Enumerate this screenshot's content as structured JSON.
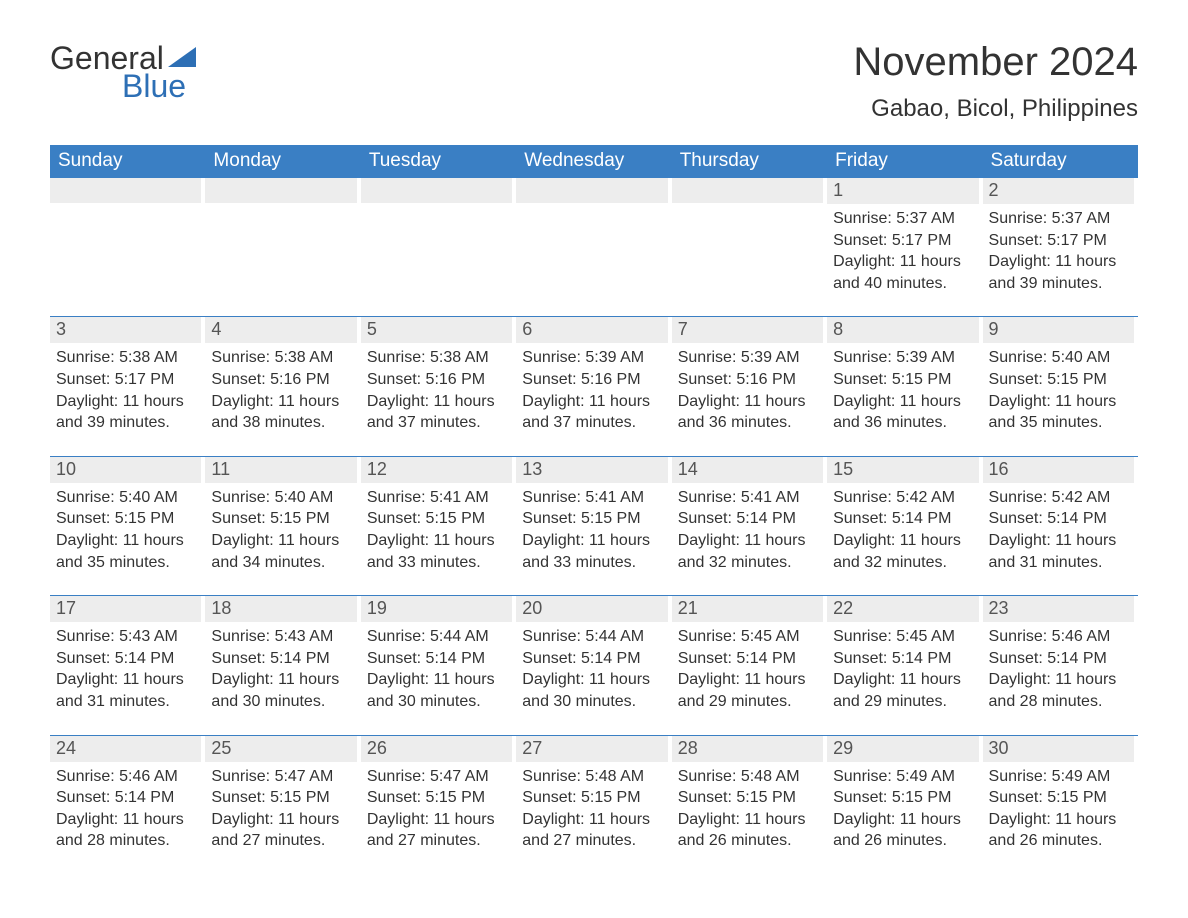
{
  "logo": {
    "text_general": "General",
    "text_blue": "Blue",
    "flag_color": "#2d6fb5"
  },
  "title": {
    "month": "November 2024",
    "location": "Gabao, Bicol, Philippines"
  },
  "colors": {
    "header_bg": "#3a7fc4",
    "header_text": "#ffffff",
    "daynum_bg": "#ededed",
    "week_border": "#3a7fc4",
    "body_text": "#333333",
    "background": "#ffffff"
  },
  "typography": {
    "month_title_fontsize": 40,
    "location_fontsize": 24,
    "weekday_fontsize": 19,
    "daynum_fontsize": 18,
    "body_fontsize": 16
  },
  "weekdays": [
    "Sunday",
    "Monday",
    "Tuesday",
    "Wednesday",
    "Thursday",
    "Friday",
    "Saturday"
  ],
  "weeks": [
    [
      {
        "empty": true
      },
      {
        "empty": true
      },
      {
        "empty": true
      },
      {
        "empty": true
      },
      {
        "empty": true
      },
      {
        "day": "1",
        "sunrise": "Sunrise: 5:37 AM",
        "sunset": "Sunset: 5:17 PM",
        "daylight1": "Daylight: 11 hours",
        "daylight2": "and 40 minutes."
      },
      {
        "day": "2",
        "sunrise": "Sunrise: 5:37 AM",
        "sunset": "Sunset: 5:17 PM",
        "daylight1": "Daylight: 11 hours",
        "daylight2": "and 39 minutes."
      }
    ],
    [
      {
        "day": "3",
        "sunrise": "Sunrise: 5:38 AM",
        "sunset": "Sunset: 5:17 PM",
        "daylight1": "Daylight: 11 hours",
        "daylight2": "and 39 minutes."
      },
      {
        "day": "4",
        "sunrise": "Sunrise: 5:38 AM",
        "sunset": "Sunset: 5:16 PM",
        "daylight1": "Daylight: 11 hours",
        "daylight2": "and 38 minutes."
      },
      {
        "day": "5",
        "sunrise": "Sunrise: 5:38 AM",
        "sunset": "Sunset: 5:16 PM",
        "daylight1": "Daylight: 11 hours",
        "daylight2": "and 37 minutes."
      },
      {
        "day": "6",
        "sunrise": "Sunrise: 5:39 AM",
        "sunset": "Sunset: 5:16 PM",
        "daylight1": "Daylight: 11 hours",
        "daylight2": "and 37 minutes."
      },
      {
        "day": "7",
        "sunrise": "Sunrise: 5:39 AM",
        "sunset": "Sunset: 5:16 PM",
        "daylight1": "Daylight: 11 hours",
        "daylight2": "and 36 minutes."
      },
      {
        "day": "8",
        "sunrise": "Sunrise: 5:39 AM",
        "sunset": "Sunset: 5:15 PM",
        "daylight1": "Daylight: 11 hours",
        "daylight2": "and 36 minutes."
      },
      {
        "day": "9",
        "sunrise": "Sunrise: 5:40 AM",
        "sunset": "Sunset: 5:15 PM",
        "daylight1": "Daylight: 11 hours",
        "daylight2": "and 35 minutes."
      }
    ],
    [
      {
        "day": "10",
        "sunrise": "Sunrise: 5:40 AM",
        "sunset": "Sunset: 5:15 PM",
        "daylight1": "Daylight: 11 hours",
        "daylight2": "and 35 minutes."
      },
      {
        "day": "11",
        "sunrise": "Sunrise: 5:40 AM",
        "sunset": "Sunset: 5:15 PM",
        "daylight1": "Daylight: 11 hours",
        "daylight2": "and 34 minutes."
      },
      {
        "day": "12",
        "sunrise": "Sunrise: 5:41 AM",
        "sunset": "Sunset: 5:15 PM",
        "daylight1": "Daylight: 11 hours",
        "daylight2": "and 33 minutes."
      },
      {
        "day": "13",
        "sunrise": "Sunrise: 5:41 AM",
        "sunset": "Sunset: 5:15 PM",
        "daylight1": "Daylight: 11 hours",
        "daylight2": "and 33 minutes."
      },
      {
        "day": "14",
        "sunrise": "Sunrise: 5:41 AM",
        "sunset": "Sunset: 5:14 PM",
        "daylight1": "Daylight: 11 hours",
        "daylight2": "and 32 minutes."
      },
      {
        "day": "15",
        "sunrise": "Sunrise: 5:42 AM",
        "sunset": "Sunset: 5:14 PM",
        "daylight1": "Daylight: 11 hours",
        "daylight2": "and 32 minutes."
      },
      {
        "day": "16",
        "sunrise": "Sunrise: 5:42 AM",
        "sunset": "Sunset: 5:14 PM",
        "daylight1": "Daylight: 11 hours",
        "daylight2": "and 31 minutes."
      }
    ],
    [
      {
        "day": "17",
        "sunrise": "Sunrise: 5:43 AM",
        "sunset": "Sunset: 5:14 PM",
        "daylight1": "Daylight: 11 hours",
        "daylight2": "and 31 minutes."
      },
      {
        "day": "18",
        "sunrise": "Sunrise: 5:43 AM",
        "sunset": "Sunset: 5:14 PM",
        "daylight1": "Daylight: 11 hours",
        "daylight2": "and 30 minutes."
      },
      {
        "day": "19",
        "sunrise": "Sunrise: 5:44 AM",
        "sunset": "Sunset: 5:14 PM",
        "daylight1": "Daylight: 11 hours",
        "daylight2": "and 30 minutes."
      },
      {
        "day": "20",
        "sunrise": "Sunrise: 5:44 AM",
        "sunset": "Sunset: 5:14 PM",
        "daylight1": "Daylight: 11 hours",
        "daylight2": "and 30 minutes."
      },
      {
        "day": "21",
        "sunrise": "Sunrise: 5:45 AM",
        "sunset": "Sunset: 5:14 PM",
        "daylight1": "Daylight: 11 hours",
        "daylight2": "and 29 minutes."
      },
      {
        "day": "22",
        "sunrise": "Sunrise: 5:45 AM",
        "sunset": "Sunset: 5:14 PM",
        "daylight1": "Daylight: 11 hours",
        "daylight2": "and 29 minutes."
      },
      {
        "day": "23",
        "sunrise": "Sunrise: 5:46 AM",
        "sunset": "Sunset: 5:14 PM",
        "daylight1": "Daylight: 11 hours",
        "daylight2": "and 28 minutes."
      }
    ],
    [
      {
        "day": "24",
        "sunrise": "Sunrise: 5:46 AM",
        "sunset": "Sunset: 5:14 PM",
        "daylight1": "Daylight: 11 hours",
        "daylight2": "and 28 minutes."
      },
      {
        "day": "25",
        "sunrise": "Sunrise: 5:47 AM",
        "sunset": "Sunset: 5:15 PM",
        "daylight1": "Daylight: 11 hours",
        "daylight2": "and 27 minutes."
      },
      {
        "day": "26",
        "sunrise": "Sunrise: 5:47 AM",
        "sunset": "Sunset: 5:15 PM",
        "daylight1": "Daylight: 11 hours",
        "daylight2": "and 27 minutes."
      },
      {
        "day": "27",
        "sunrise": "Sunrise: 5:48 AM",
        "sunset": "Sunset: 5:15 PM",
        "daylight1": "Daylight: 11 hours",
        "daylight2": "and 27 minutes."
      },
      {
        "day": "28",
        "sunrise": "Sunrise: 5:48 AM",
        "sunset": "Sunset: 5:15 PM",
        "daylight1": "Daylight: 11 hours",
        "daylight2": "and 26 minutes."
      },
      {
        "day": "29",
        "sunrise": "Sunrise: 5:49 AM",
        "sunset": "Sunset: 5:15 PM",
        "daylight1": "Daylight: 11 hours",
        "daylight2": "and 26 minutes."
      },
      {
        "day": "30",
        "sunrise": "Sunrise: 5:49 AM",
        "sunset": "Sunset: 5:15 PM",
        "daylight1": "Daylight: 11 hours",
        "daylight2": "and 26 minutes."
      }
    ]
  ]
}
